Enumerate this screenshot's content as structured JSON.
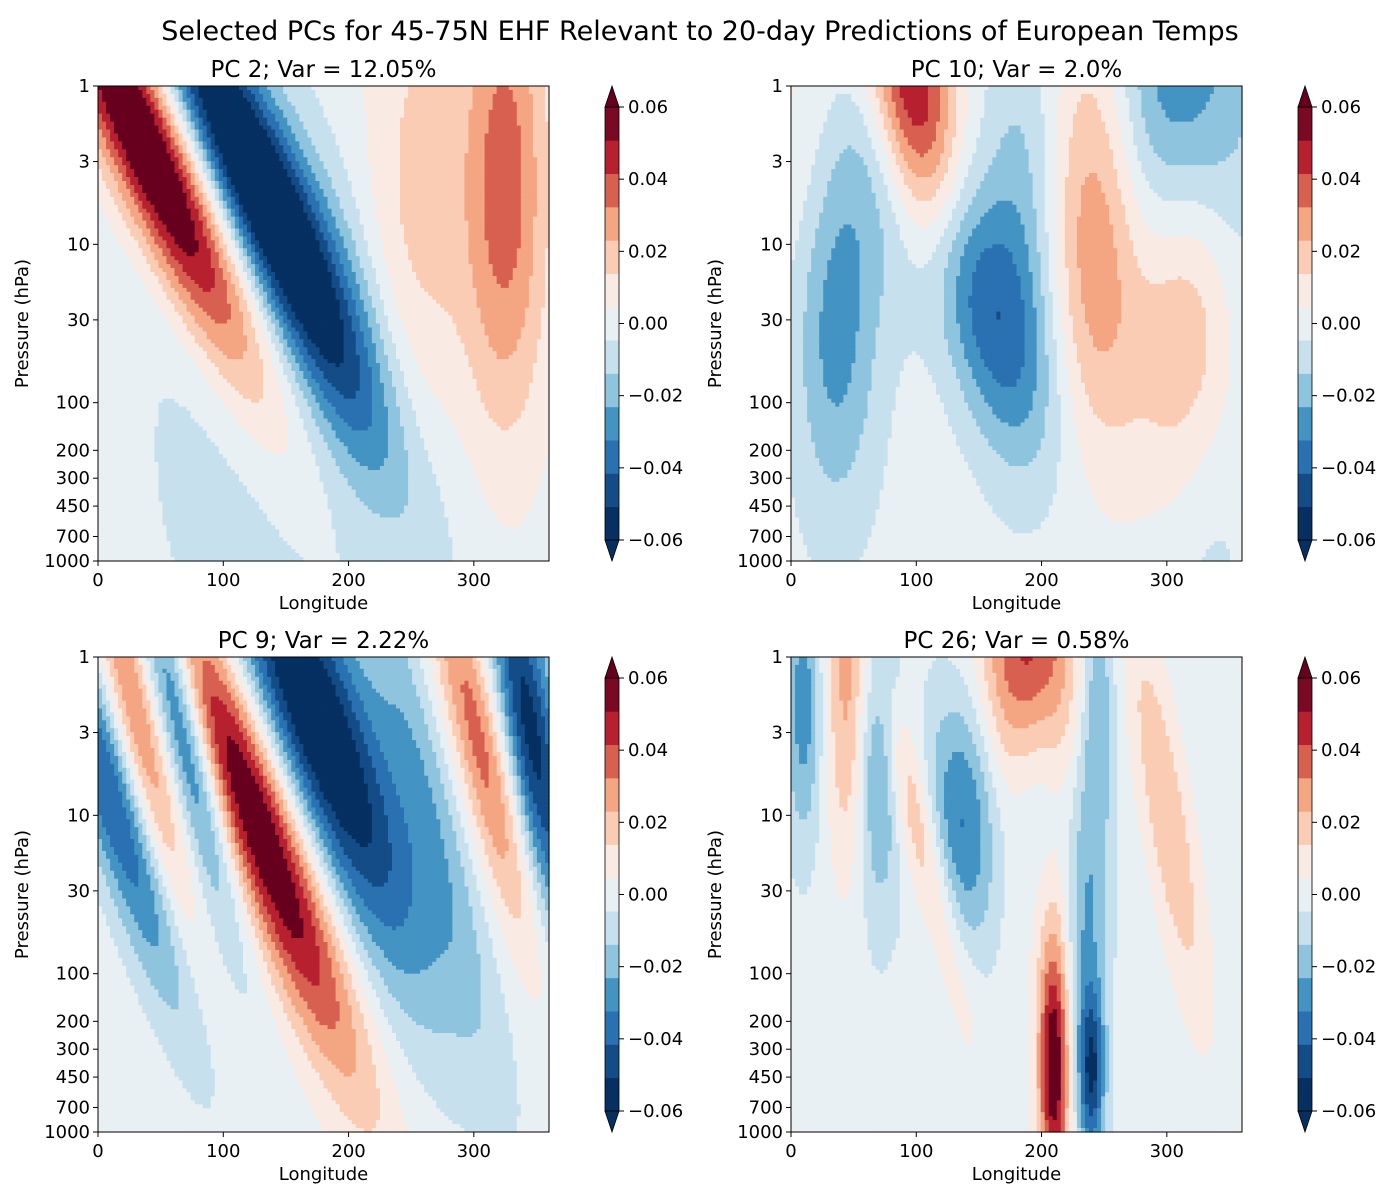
{
  "figure": {
    "title": "Selected PCs for 45-75N EHF Relevant to 20-day Predictions of European Temps"
  },
  "colormap": {
    "name": "RdBu_r",
    "levels": [
      -0.06,
      -0.05,
      -0.04,
      -0.03,
      -0.02,
      -0.01,
      0.0,
      0.01,
      0.02,
      0.03,
      0.04,
      0.05,
      0.06
    ],
    "colors": [
      "#053061",
      "#134c87",
      "#2a71b2",
      "#4393c3",
      "#8ec4de",
      "#c7e0ed",
      "#e9f0f4",
      "#f9ebe3",
      "#fbccb4",
      "#f4a582",
      "#d86050",
      "#b7212f",
      "#7a0a23"
    ],
    "under_color": "#053061",
    "over_color": "#67001f",
    "extend": "both"
  },
  "chart_data": [
    {
      "type": "heatmap",
      "title": "PC 2; Var = 12.05%",
      "xlabel": "Longitude",
      "ylabel": "Pressure (hPa)",
      "xlim": [
        0,
        360
      ],
      "xticks": [
        0,
        100,
        200,
        300
      ],
      "ylim": [
        1000,
        1
      ],
      "yscale": "log",
      "yticks": [
        1,
        3,
        10,
        30,
        100,
        200,
        300,
        450,
        700,
        1000
      ],
      "colorbar_ticks": [
        "0.06",
        "0.04",
        "0.02",
        "0.00",
        "−0.02",
        "−0.04",
        "−0.06"
      ],
      "background_value": 0.006,
      "features": [
        {
          "lon": 40,
          "p": 2.5,
          "amp": 0.075,
          "slon": 26,
          "sp": 1.05,
          "tilt": 55
        },
        {
          "lon": 120,
          "p": 3.2,
          "amp": -0.072,
          "slon": 26,
          "sp": 1.05,
          "tilt": 55
        },
        {
          "lon": 185,
          "p": 20,
          "amp": -0.018,
          "slon": 32,
          "sp": 0.9,
          "tilt": 40
        },
        {
          "lon": 325,
          "p": 4.5,
          "amp": 0.04,
          "slon": 24,
          "sp": 1.1,
          "tilt": 0
        },
        {
          "lon": 255,
          "p": 8,
          "amp": 0.02,
          "slon": 30,
          "sp": 1.2,
          "tilt": 0
        },
        {
          "lon": 100,
          "p": 150,
          "amp": -0.008,
          "slon": 70,
          "sp": 1.5,
          "tilt": 0
        },
        {
          "lon": 230,
          "p": 400,
          "amp": -0.008,
          "slon": 60,
          "sp": 1.2,
          "tilt": 0
        }
      ]
    },
    {
      "type": "heatmap",
      "title": "PC 10; Var = 2.0%",
      "xlabel": "Longitude",
      "ylabel": "Pressure (hPa)",
      "xlim": [
        0,
        360
      ],
      "xticks": [
        0,
        100,
        200,
        300
      ],
      "ylim": [
        1000,
        1
      ],
      "yscale": "log",
      "yticks": [
        1,
        3,
        10,
        30,
        100,
        200,
        300,
        450,
        700,
        1000
      ],
      "colorbar_ticks": [
        "0.06",
        "0.04",
        "0.02",
        "0.00",
        "−0.02",
        "−0.04",
        "−0.06"
      ],
      "background_value": 0.004,
      "features": [
        {
          "lon": 100,
          "p": 1.7,
          "amp": 0.07,
          "slon": 24,
          "sp": 0.85,
          "tilt": 15
        },
        {
          "lon": 130,
          "p": 14,
          "amp": -0.05,
          "slon": 38,
          "sp": 0.75,
          "tilt": 45
        },
        {
          "lon": 35,
          "p": 25,
          "amp": -0.035,
          "slon": 24,
          "sp": 0.85,
          "tilt": 0
        },
        {
          "lon": 310,
          "p": 1.6,
          "amp": -0.05,
          "slon": 38,
          "sp": 0.85,
          "tilt": 0
        },
        {
          "lon": 245,
          "p": 9,
          "amp": 0.038,
          "slon": 28,
          "sp": 1.0,
          "tilt": 0
        },
        {
          "lon": 315,
          "p": 15,
          "amp": 0.04,
          "slon": 28,
          "sp": 0.95,
          "tilt": 0
        },
        {
          "lon": 185,
          "p": 6,
          "amp": -0.018,
          "slon": 22,
          "sp": 0.9,
          "tilt": 0
        },
        {
          "lon": 20,
          "p": 2,
          "amp": 0.015,
          "slon": 28,
          "sp": 1.0,
          "tilt": 0
        },
        {
          "lon": 330,
          "p": 600,
          "amp": -0.01,
          "slon": 25,
          "sp": 0.8,
          "tilt": 0
        }
      ]
    },
    {
      "type": "heatmap",
      "title": "PC 9; Var = 2.22%",
      "xlabel": "Longitude",
      "ylabel": "Pressure (hPa)",
      "xlim": [
        0,
        360
      ],
      "xticks": [
        0,
        100,
        200,
        300
      ],
      "ylim": [
        1000,
        1
      ],
      "yscale": "log",
      "yticks": [
        1,
        3,
        10,
        30,
        100,
        200,
        300,
        450,
        700,
        1000
      ],
      "colorbar_ticks": [
        "0.06",
        "0.04",
        "0.02",
        "0.00",
        "−0.02",
        "−0.04",
        "−0.06"
      ],
      "background_value": 0.005,
      "features": [
        {
          "lon": 130,
          "p": 12,
          "amp": 0.07,
          "slon": 24,
          "sp": 1.1,
          "tilt": 45
        },
        {
          "lon": 175,
          "p": 2.5,
          "amp": -0.072,
          "slon": 32,
          "sp": 1.1,
          "tilt": 45
        },
        {
          "lon": 65,
          "p": 2.2,
          "amp": -0.05,
          "slon": 13,
          "sp": 0.9,
          "tilt": 30
        },
        {
          "lon": 5,
          "p": 6,
          "amp": -0.045,
          "slon": 18,
          "sp": 1.0,
          "tilt": 40
        },
        {
          "lon": 30,
          "p": 2.3,
          "amp": 0.035,
          "slon": 13,
          "sp": 0.9,
          "tilt": 30
        },
        {
          "lon": 305,
          "p": 3.5,
          "amp": 0.04,
          "slon": 16,
          "sp": 0.9,
          "tilt": 30
        },
        {
          "lon": 345,
          "p": 3,
          "amp": -0.06,
          "slon": 16,
          "sp": 0.9,
          "tilt": 20
        },
        {
          "lon": 260,
          "p": 6,
          "amp": -0.02,
          "slon": 18,
          "sp": 1.2,
          "tilt": 30
        }
      ]
    },
    {
      "type": "heatmap",
      "title": "PC 26; Var = 0.58%",
      "xlabel": "Longitude",
      "ylabel": "Pressure (hPa)",
      "xlim": [
        0,
        360
      ],
      "xticks": [
        0,
        100,
        200,
        300
      ],
      "ylim": [
        1000,
        1
      ],
      "yscale": "log",
      "yticks": [
        1,
        3,
        10,
        30,
        100,
        200,
        300,
        450,
        700,
        1000
      ],
      "colorbar_ticks": [
        "0.06",
        "0.04",
        "0.02",
        "0.00",
        "−0.02",
        "−0.04",
        "−0.06"
      ],
      "background_value": 0.004,
      "features": [
        {
          "lon": 190,
          "p": 1.4,
          "amp": 0.06,
          "slon": 28,
          "sp": 0.8,
          "tilt": 0
        },
        {
          "lon": 140,
          "p": 10,
          "amp": -0.04,
          "slon": 22,
          "sp": 0.6,
          "tilt": 0
        },
        {
          "lon": 195,
          "p": 5.5,
          "amp": -0.035,
          "slon": 18,
          "sp": 0.5,
          "tilt": 0
        },
        {
          "lon": 210,
          "p": 380,
          "amp": 0.068,
          "slon": 9,
          "sp": 0.6,
          "tilt": 0
        },
        {
          "lon": 240,
          "p": 420,
          "amp": -0.045,
          "slon": 7,
          "sp": 0.35,
          "tilt": 0
        },
        {
          "lon": 70,
          "p": 4,
          "amp": -0.03,
          "slon": 12,
          "sp": 0.7,
          "tilt": 0
        },
        {
          "lon": 45,
          "p": 1.5,
          "amp": 0.03,
          "slon": 12,
          "sp": 0.8,
          "tilt": 0
        },
        {
          "lon": 235,
          "p": 60,
          "amp": -0.025,
          "slon": 12,
          "sp": 0.9,
          "tilt": 0
        },
        {
          "lon": 105,
          "p": 15,
          "amp": 0.028,
          "slon": 12,
          "sp": 0.8,
          "tilt": 30
        },
        {
          "lon": 300,
          "p": 10,
          "amp": 0.025,
          "slon": 14,
          "sp": 0.9,
          "tilt": 20
        },
        {
          "lon": 10,
          "p": 2,
          "amp": -0.03,
          "slon": 10,
          "sp": 0.6,
          "tilt": 0
        },
        {
          "lon": 245,
          "p": 1.8,
          "amp": -0.025,
          "slon": 10,
          "sp": 0.7,
          "tilt": 0
        }
      ]
    }
  ]
}
